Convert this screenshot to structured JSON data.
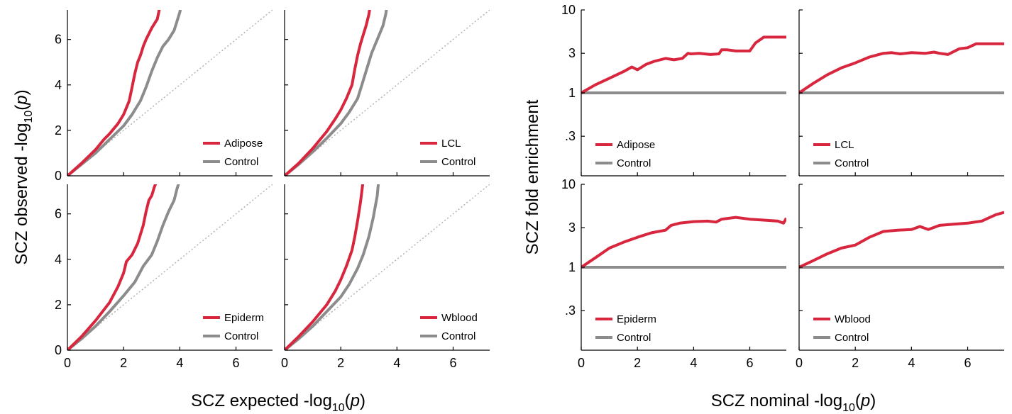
{
  "colors": {
    "case": "#d7263d",
    "control": "#8c8c8c",
    "diagonal": "#b3b3b3"
  },
  "left": {
    "xlabel_main": "SCZ expected -log",
    "xlabel_sub": "10",
    "xlabel_tail": "(",
    "xlabel_var": "p",
    "xlabel_close": ")",
    "ylabel_main": "SCZ observed -log",
    "ylabel_sub": "10",
    "ylabel_tail": "(",
    "ylabel_var": "p",
    "ylabel_close": ")",
    "xticks": [
      "0",
      "2",
      "4",
      "6"
    ],
    "yticks": [
      "0",
      "2",
      "4",
      "6"
    ]
  },
  "right": {
    "xlabel_main": "SCZ nominal -log",
    "xlabel_sub": "10",
    "xlabel_tail": "(",
    "xlabel_var": "p",
    "xlabel_close": ")",
    "ylabel": "SCZ fold enrichment",
    "xticks": [
      "0",
      "2",
      "4",
      "6"
    ],
    "yticks": [
      "10",
      "3",
      "1",
      ".3"
    ]
  },
  "chart_data": [
    {
      "type": "line",
      "panel": "qq-adipose",
      "xlim": [
        0,
        7.3
      ],
      "ylim": [
        0,
        7.3
      ],
      "diagonal": true,
      "series": [
        {
          "name": "Adipose",
          "x": [
            0,
            0.5,
            1.0,
            1.3,
            1.5,
            1.8,
            2.0,
            2.2,
            2.3,
            2.4,
            2.5,
            2.6,
            2.7,
            2.8,
            3.0,
            3.2,
            3.25,
            3.3
          ],
          "y": [
            0,
            0.55,
            1.15,
            1.6,
            1.85,
            2.3,
            2.7,
            3.3,
            3.9,
            4.5,
            5.0,
            5.3,
            5.7,
            6.0,
            6.5,
            6.9,
            7.2,
            7.5
          ]
        },
        {
          "name": "Control",
          "x": [
            0,
            0.5,
            1.0,
            1.5,
            2.0,
            2.3,
            2.6,
            2.8,
            3.0,
            3.2,
            3.4,
            3.6,
            3.8,
            3.9,
            4.0,
            4.05
          ],
          "y": [
            0,
            0.5,
            1.0,
            1.6,
            2.2,
            2.7,
            3.3,
            3.9,
            4.6,
            5.2,
            5.7,
            6.0,
            6.4,
            6.8,
            7.2,
            7.5
          ]
        }
      ],
      "legend": [
        "Adipose",
        "Control"
      ]
    },
    {
      "type": "line",
      "panel": "qq-lcl",
      "xlim": [
        0,
        7.3
      ],
      "ylim": [
        0,
        7.3
      ],
      "diagonal": true,
      "series": [
        {
          "name": "LCL",
          "x": [
            0,
            0.5,
            1.0,
            1.5,
            1.8,
            2.0,
            2.2,
            2.4,
            2.5,
            2.6,
            2.7,
            2.8,
            2.9,
            3.0,
            3.05
          ],
          "y": [
            0,
            0.55,
            1.2,
            1.95,
            2.5,
            2.9,
            3.4,
            4.0,
            4.7,
            5.3,
            5.8,
            6.2,
            6.6,
            7.1,
            7.5
          ]
        },
        {
          "name": "Control",
          "x": [
            0,
            0.5,
            1.0,
            1.5,
            2.0,
            2.3,
            2.6,
            2.75,
            2.9,
            3.1,
            3.3,
            3.5,
            3.6,
            3.65
          ],
          "y": [
            0,
            0.5,
            1.05,
            1.65,
            2.3,
            2.8,
            3.4,
            4.0,
            4.6,
            5.4,
            6.0,
            6.6,
            7.1,
            7.5
          ]
        }
      ],
      "legend": [
        "LCL",
        "Control"
      ]
    },
    {
      "type": "line",
      "panel": "qq-epiderm",
      "xlim": [
        0,
        7.3
      ],
      "ylim": [
        0,
        7.3
      ],
      "diagonal": true,
      "series": [
        {
          "name": "Epiderm",
          "x": [
            0,
            0.5,
            1.0,
            1.5,
            1.8,
            2.0,
            2.1,
            2.3,
            2.5,
            2.7,
            2.8,
            2.9,
            3.0,
            3.1,
            3.2
          ],
          "y": [
            0,
            0.6,
            1.3,
            2.1,
            2.8,
            3.4,
            3.9,
            4.2,
            4.7,
            5.5,
            6.1,
            6.6,
            6.8,
            7.2,
            7.5
          ]
        },
        {
          "name": "Control",
          "x": [
            0,
            0.5,
            1.0,
            1.5,
            2.0,
            2.4,
            2.7,
            3.0,
            3.2,
            3.4,
            3.6,
            3.8,
            3.9,
            4.0
          ],
          "y": [
            0,
            0.5,
            1.05,
            1.7,
            2.4,
            3.0,
            3.7,
            4.2,
            4.8,
            5.5,
            6.1,
            6.6,
            7.1,
            7.5
          ]
        }
      ],
      "legend": [
        "Epiderm",
        "Control"
      ]
    },
    {
      "type": "line",
      "panel": "qq-wblood",
      "xlim": [
        0,
        7.3
      ],
      "ylim": [
        0,
        7.3
      ],
      "diagonal": true,
      "series": [
        {
          "name": "Wblood",
          "x": [
            0,
            0.5,
            1.0,
            1.5,
            1.8,
            2.0,
            2.2,
            2.4,
            2.5,
            2.6,
            2.7,
            2.75,
            2.8
          ],
          "y": [
            0,
            0.6,
            1.25,
            2.0,
            2.6,
            3.1,
            3.7,
            4.4,
            5.0,
            5.7,
            6.5,
            7.0,
            7.5
          ]
        },
        {
          "name": "Control",
          "x": [
            0,
            0.5,
            1.0,
            1.5,
            2.0,
            2.3,
            2.6,
            2.8,
            3.0,
            3.15,
            3.3,
            3.35
          ],
          "y": [
            0,
            0.5,
            1.05,
            1.7,
            2.35,
            2.9,
            3.6,
            4.2,
            5.0,
            5.8,
            6.8,
            7.5
          ]
        }
      ],
      "legend": [
        "Wblood",
        "Control"
      ]
    },
    {
      "type": "line",
      "panel": "fe-adipose",
      "xlim": [
        0,
        7.3
      ],
      "ylim": [
        0.1,
        10
      ],
      "yscale": "log",
      "series": [
        {
          "name": "Adipose",
          "x": [
            0,
            0.5,
            1.0,
            1.5,
            1.8,
            2.0,
            2.3,
            2.6,
            3.0,
            3.3,
            3.6,
            3.8,
            3.9,
            4.2,
            4.6,
            4.9,
            5.0,
            5.2,
            5.5,
            5.8,
            6.0,
            6.2,
            6.5,
            7.0,
            7.3
          ],
          "y": [
            1.0,
            1.25,
            1.5,
            1.8,
            2.05,
            1.9,
            2.2,
            2.4,
            2.6,
            2.5,
            2.6,
            3.0,
            2.95,
            3.0,
            2.9,
            2.95,
            3.3,
            3.3,
            3.2,
            3.2,
            3.2,
            4.0,
            4.7,
            4.7,
            4.7
          ]
        },
        {
          "name": "Control",
          "x": [
            0,
            7.3
          ],
          "y": [
            1.0,
            1.0
          ]
        }
      ],
      "legend": [
        "Adipose",
        "Control"
      ]
    },
    {
      "type": "line",
      "panel": "fe-lcl",
      "xlim": [
        0,
        7.3
      ],
      "ylim": [
        0.1,
        10
      ],
      "yscale": "log",
      "series": [
        {
          "name": "LCL",
          "x": [
            0,
            0.5,
            1.0,
            1.5,
            2.0,
            2.5,
            3.0,
            3.3,
            3.6,
            4.0,
            4.5,
            4.8,
            5.0,
            5.3,
            5.7,
            6.0,
            6.3,
            6.6,
            7.0,
            7.3
          ],
          "y": [
            1.0,
            1.3,
            1.65,
            2.0,
            2.3,
            2.7,
            3.0,
            3.05,
            2.95,
            3.05,
            3.0,
            3.1,
            3.0,
            2.9,
            3.4,
            3.5,
            3.9,
            3.9,
            3.9,
            3.9
          ]
        },
        {
          "name": "Control",
          "x": [
            0,
            7.3
          ],
          "y": [
            1.0,
            1.0
          ]
        }
      ],
      "legend": [
        "LCL",
        "Control"
      ]
    },
    {
      "type": "line",
      "panel": "fe-epiderm",
      "xlim": [
        0,
        7.3
      ],
      "ylim": [
        0.1,
        10
      ],
      "yscale": "log",
      "series": [
        {
          "name": "Epiderm",
          "x": [
            0,
            0.5,
            1.0,
            1.5,
            2.0,
            2.5,
            3.0,
            3.2,
            3.5,
            4.0,
            4.5,
            4.8,
            5.0,
            5.5,
            6.0,
            6.5,
            7.0,
            7.2,
            7.3
          ],
          "y": [
            1.0,
            1.3,
            1.7,
            2.0,
            2.3,
            2.6,
            2.8,
            3.2,
            3.4,
            3.55,
            3.6,
            3.5,
            3.8,
            4.0,
            3.8,
            3.7,
            3.6,
            3.4,
            3.9
          ]
        },
        {
          "name": "Control",
          "x": [
            0,
            7.3
          ],
          "y": [
            1.0,
            1.0
          ]
        }
      ],
      "legend": [
        "Epiderm",
        "Control"
      ]
    },
    {
      "type": "line",
      "panel": "fe-wblood",
      "xlim": [
        0,
        7.3
      ],
      "ylim": [
        0.1,
        10
      ],
      "yscale": "log",
      "series": [
        {
          "name": "Wblood",
          "x": [
            0,
            0.5,
            1.0,
            1.5,
            2.0,
            2.5,
            3.0,
            3.5,
            4.0,
            4.3,
            4.6,
            5.0,
            5.5,
            6.0,
            6.5,
            7.0,
            7.3
          ],
          "y": [
            1.0,
            1.2,
            1.45,
            1.7,
            1.85,
            2.3,
            2.7,
            2.8,
            2.85,
            3.1,
            2.85,
            3.2,
            3.3,
            3.4,
            3.6,
            4.3,
            4.6
          ]
        },
        {
          "name": "Control",
          "x": [
            0,
            7.3
          ],
          "y": [
            1.0,
            1.0
          ]
        }
      ],
      "legend": [
        "Wblood",
        "Control"
      ]
    }
  ]
}
